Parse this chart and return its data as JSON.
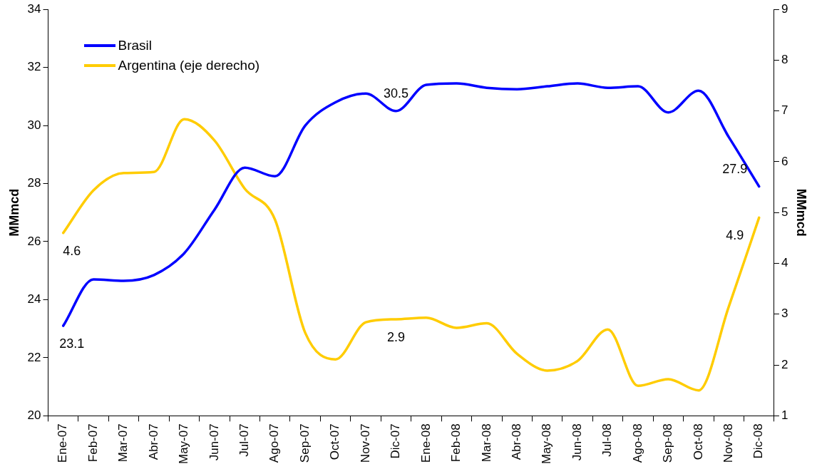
{
  "chart_data": {
    "type": "line",
    "ylabel": "MMmcd",
    "y2label": "MMmcd",
    "categories": [
      "Ene-07",
      "Feb-07",
      "Mar-07",
      "Abr-07",
      "May-07",
      "Jun-07",
      "Jul-07",
      "Ago-07",
      "Sep-07",
      "Oct-07",
      "Nov-07",
      "Dic-07",
      "Ene-08",
      "Feb-08",
      "Mar-08",
      "Abr-08",
      "May-08",
      "Jun-08",
      "Jul-08",
      "Ago-08",
      "Sep-08",
      "Oct-08",
      "Nov-08",
      "Dic-08"
    ],
    "series": [
      {
        "name": "Brasil",
        "color": "#0000ff",
        "values": [
          23.1,
          24.7,
          24.65,
          24.85,
          25.6,
          27.1,
          28.55,
          28.25,
          30.0,
          30.8,
          31.1,
          30.5,
          31.4,
          31.45,
          31.3,
          31.25,
          31.35,
          31.45,
          31.3,
          31.35,
          30.45,
          31.2,
          29.6,
          27.9
        ],
        "value_labels": [
          "23.1",
          null,
          null,
          null,
          null,
          null,
          null,
          null,
          null,
          null,
          null,
          "30.5",
          null,
          null,
          null,
          null,
          null,
          null,
          null,
          null,
          null,
          null,
          null,
          "27.9"
        ]
      },
      {
        "name": "Argentina (eje derecho)",
        "color": "#ffcc00",
        "axis": "y2",
        "values": [
          4.6,
          5.44,
          5.78,
          5.8,
          6.84,
          6.42,
          5.47,
          4.86,
          2.63,
          2.11,
          2.84,
          2.9,
          2.93,
          2.73,
          2.82,
          2.22,
          1.89,
          2.08,
          2.7,
          1.59,
          1.72,
          1.5,
          3.15,
          4.9
        ],
        "value_labels": [
          "4.6",
          null,
          null,
          null,
          null,
          null,
          null,
          null,
          null,
          null,
          null,
          "2.9",
          null,
          null,
          null,
          null,
          null,
          null,
          null,
          null,
          null,
          null,
          null,
          "4.9"
        ]
      }
    ],
    "ylim": [
      20,
      34
    ],
    "yticks": [
      20,
      22,
      24,
      26,
      28,
      30,
      32,
      34
    ],
    "y2lim": [
      1,
      9
    ],
    "y2ticks": [
      1,
      2,
      3,
      4,
      5,
      6,
      7,
      8,
      9
    ],
    "legend": "top left",
    "marker": "none",
    "line_style": "solid"
  }
}
